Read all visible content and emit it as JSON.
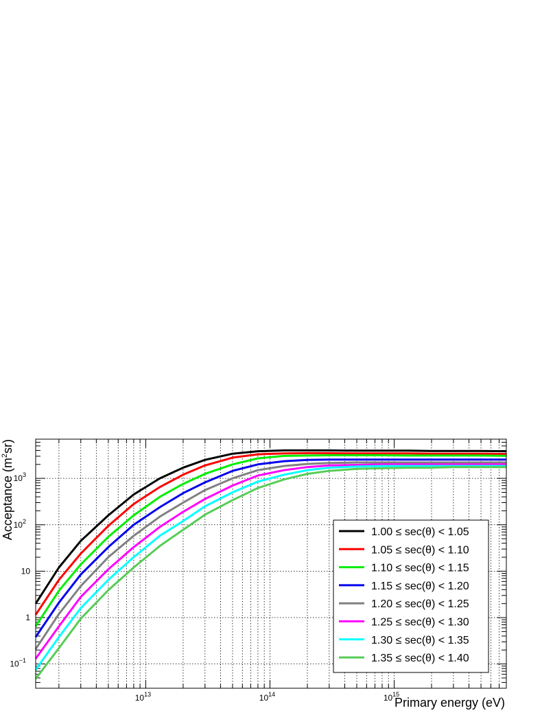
{
  "chart_data": {
    "type": "line",
    "xlabel": "Primary energy (eV)",
    "ylabel": "Acceptance (m²sr)",
    "x_scale": "log",
    "y_scale": "log",
    "xlim": [
      1300000000000.0,
      8000000000000000.0
    ],
    "ylim": [
      0.03,
      7000
    ],
    "grid": true,
    "legend_position": "bottom-right",
    "x_tick_labels": [
      {
        "value": 10000000000000.0,
        "base": "10",
        "exp": "13"
      },
      {
        "value": 100000000000000.0,
        "base": "10",
        "exp": "14"
      },
      {
        "value": 1000000000000000.0,
        "base": "10",
        "exp": "15"
      }
    ],
    "y_tick_labels": [
      {
        "value": 0.1,
        "base": "10",
        "exp": "−1"
      },
      {
        "value": 1,
        "base": "1",
        "exp": ""
      },
      {
        "value": 10,
        "base": "10",
        "exp": ""
      },
      {
        "value": 100,
        "base": "10",
        "exp": "2"
      },
      {
        "value": 1000,
        "base": "10",
        "exp": "3"
      }
    ],
    "x": [
      1300000000000.0,
      2000000000000.0,
      3000000000000.0,
      5000000000000.0,
      8000000000000.0,
      13000000000000.0,
      20000000000000.0,
      30000000000000.0,
      50000000000000.0,
      80000000000000.0,
      130000000000000.0,
      200000000000000.0,
      300000000000000.0,
      500000000000000.0,
      800000000000000.0,
      1300000000000000.0,
      2000000000000000.0,
      3000000000000000.0,
      5000000000000000.0,
      8000000000000000.0
    ],
    "series": [
      {
        "name": "1.00 ≤ sec(θ) < 1.05",
        "color": "#000000",
        "values": [
          2.0,
          12,
          45,
          160,
          450,
          1000,
          1700,
          2500,
          3400,
          3850,
          4000,
          4000,
          4000,
          3950,
          3950,
          3950,
          3900,
          3900,
          3900,
          3850
        ]
      },
      {
        "name": "1.05 ≤ sec(θ) < 1.10",
        "color": "#ff0000",
        "values": [
          1.15,
          6.5,
          24,
          95,
          280,
          650,
          1200,
          1900,
          2800,
          3300,
          3450,
          3500,
          3500,
          3450,
          3450,
          3450,
          3400,
          3400,
          3400,
          3350
        ]
      },
      {
        "name": "1.10 ≤ sec(θ) < 1.15",
        "color": "#00ee00",
        "values": [
          0.65,
          3.8,
          14,
          55,
          160,
          400,
          760,
          1250,
          2000,
          2700,
          3050,
          3100,
          3150,
          3150,
          3150,
          3100,
          3100,
          3100,
          3100,
          3050
        ]
      },
      {
        "name": "1.15 ≤ sec(θ) < 1.20",
        "color": "#0000ee",
        "values": [
          0.38,
          2.1,
          8.5,
          33,
          100,
          240,
          480,
          820,
          1450,
          2000,
          2350,
          2500,
          2550,
          2550,
          2550,
          2550,
          2550,
          2550,
          2550,
          2550
        ]
      },
      {
        "name": "1.20 ≤ sec(θ) < 1.25",
        "color": "#808080",
        "values": [
          0.21,
          1.2,
          4.8,
          20,
          58,
          150,
          300,
          560,
          1000,
          1500,
          1850,
          2050,
          2150,
          2200,
          2200,
          2200,
          2200,
          2200,
          2200,
          2200
        ]
      },
      {
        "name": "1.25 ≤ sec(θ) < 1.30",
        "color": "#ff00ff",
        "values": [
          0.13,
          0.65,
          2.8,
          11,
          33,
          90,
          190,
          360,
          700,
          1150,
          1500,
          1750,
          1900,
          1950,
          2000,
          2000,
          2000,
          2000,
          2000,
          2000
        ]
      },
      {
        "name": "1.30 ≤ sec(θ) < 1.35",
        "color": "#00ffff",
        "values": [
          0.075,
          0.38,
          1.6,
          6.5,
          20,
          58,
          120,
          250,
          500,
          850,
          1200,
          1500,
          1700,
          1800,
          1850,
          1850,
          1850,
          1850,
          1850,
          1850
        ]
      },
      {
        "name": "1.35 ≤ sec(θ) < 1.40",
        "color": "#55cc55",
        "values": [
          0.048,
          0.22,
          0.95,
          3.9,
          12,
          35,
          78,
          165,
          340,
          620,
          950,
          1250,
          1450,
          1600,
          1650,
          1700,
          1700,
          1750,
          1750,
          1750
        ]
      }
    ]
  }
}
